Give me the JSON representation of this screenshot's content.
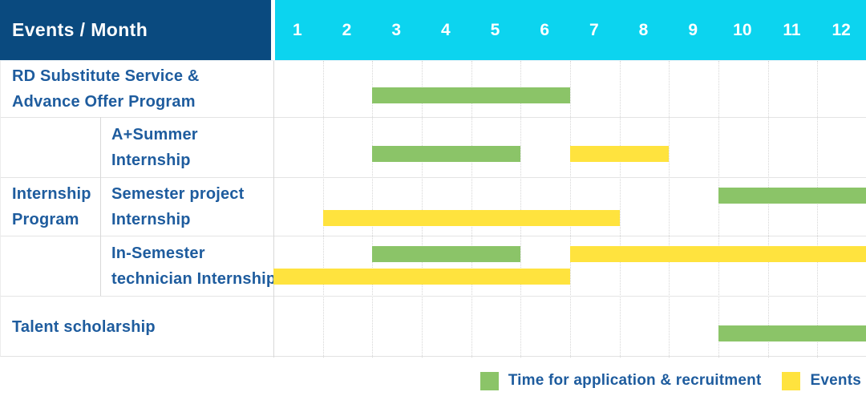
{
  "header": {
    "title": "Events / Month",
    "months": [
      "1",
      "2",
      "3",
      "4",
      "5",
      "6",
      "7",
      "8",
      "9",
      "10",
      "11",
      "12"
    ]
  },
  "rows": [
    {
      "label_lines": [
        "RD Substitute Service &",
        "Advance Offer Program"
      ],
      "group": null
    },
    {
      "label_lines": [
        "A+Summer",
        "Internship"
      ],
      "group": "Internship Program"
    },
    {
      "label_lines": [
        "Semester project",
        "Internship"
      ],
      "group": "Internship Program"
    },
    {
      "label_lines": [
        "In-Semester",
        "technician Internship"
      ],
      "group": "Internship Program"
    },
    {
      "label_lines": [
        "Talent scholarship"
      ],
      "group": null
    }
  ],
  "group_label_lines": [
    "Internship",
    "Program"
  ],
  "legend": [
    {
      "label": "Time for application & recruitment",
      "color": "#8bc468"
    },
    {
      "label": "Events",
      "color": "#ffe33e"
    }
  ],
  "colors": {
    "header_bg": "#0a4a7f",
    "months_bg": "#0cd4ef",
    "header_text": "#ffffff",
    "label_text": "#1e5c9e",
    "application_green": "#8bc468",
    "events_yellow": "#ffe33e",
    "grid_line": "#e4e4e4"
  },
  "chart_data": {
    "type": "gantt",
    "title": "Events / Month",
    "x_unit": "month",
    "x_ticks": [
      1,
      2,
      3,
      4,
      5,
      6,
      7,
      8,
      9,
      10,
      11,
      12
    ],
    "x_range": [
      1,
      12
    ],
    "grid": true,
    "legend_position": "bottom-right",
    "series_legend": [
      "Time for application & recruitment",
      "Events"
    ],
    "rows": [
      {
        "category": "RD Substitute Service & Advance Offer Program",
        "group": null,
        "bars": [
          {
            "series": "Time for application & recruitment",
            "start_month": 3,
            "end_month": 6,
            "line": 0
          }
        ]
      },
      {
        "category": "A+Summer Internship",
        "group": "Internship Program",
        "bars": [
          {
            "series": "Time for application & recruitment",
            "start_month": 3,
            "end_month": 5,
            "line": 0
          },
          {
            "series": "Events",
            "start_month": 7,
            "end_month": 8,
            "line": 0
          }
        ]
      },
      {
        "category": "Semester project Internship",
        "group": "Internship Program",
        "bars": [
          {
            "series": "Time for application & recruitment",
            "start_month": 10,
            "end_month": 12,
            "line": 0
          },
          {
            "series": "Events",
            "start_month": 2,
            "end_month": 7,
            "line": 1
          }
        ]
      },
      {
        "category": "In-Semester technician Internship",
        "group": "Internship Program",
        "bars": [
          {
            "series": "Time for application & recruitment",
            "start_month": 3,
            "end_month": 5,
            "line": 0
          },
          {
            "series": "Events",
            "start_month": 7,
            "end_month": 12,
            "line": 0
          },
          {
            "series": "Events",
            "start_month": 1,
            "end_month": 6,
            "line": 1
          }
        ]
      },
      {
        "category": "Talent scholarship",
        "group": null,
        "bars": [
          {
            "series": "Time for application & recruitment",
            "start_month": 10,
            "end_month": 12,
            "line": 0
          }
        ]
      }
    ]
  }
}
